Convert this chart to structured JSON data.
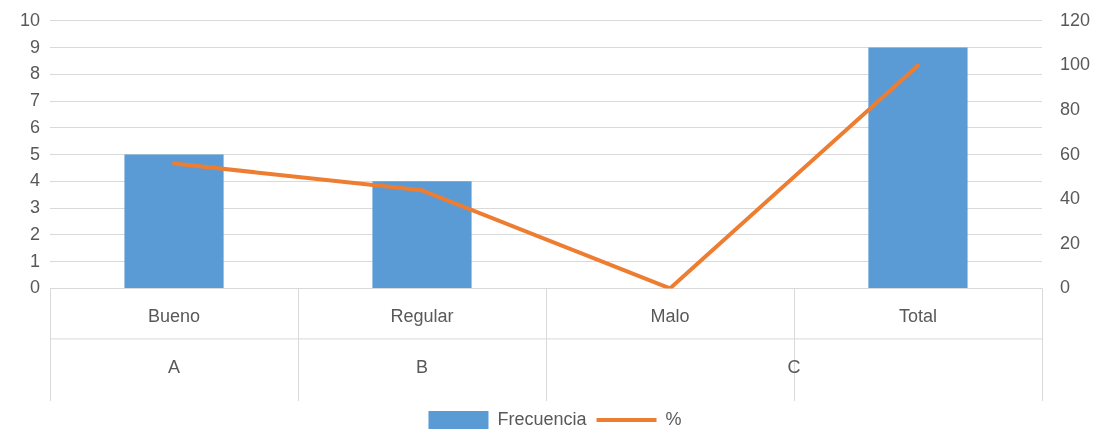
{
  "chart_data": {
    "type": "bar",
    "categories": [
      "Bueno",
      "Regular",
      "Malo",
      "Total"
    ],
    "series": [
      {
        "name": "Frecuencia",
        "color": "#5b9bd5",
        "values": [
          5,
          4,
          0,
          9
        ]
      },
      {
        "name": "%",
        "type": "line",
        "axis": "y2",
        "color": "#ed7d31",
        "values": [
          56,
          44,
          0,
          100
        ]
      }
    ],
    "annotations": [
      "A",
      "B",
      "C"
    ],
    "ylim": [
      0,
      10
    ],
    "yticks": [
      0,
      1,
      2,
      3,
      4,
      5,
      6,
      7,
      8,
      9,
      10
    ],
    "y2lim": [
      0,
      120
    ],
    "y2ticks": [
      0,
      20,
      40,
      60,
      80,
      100,
      120
    ],
    "grid": "y",
    "legend": "bottom",
    "marker": "none",
    "line_style": "solid"
  }
}
